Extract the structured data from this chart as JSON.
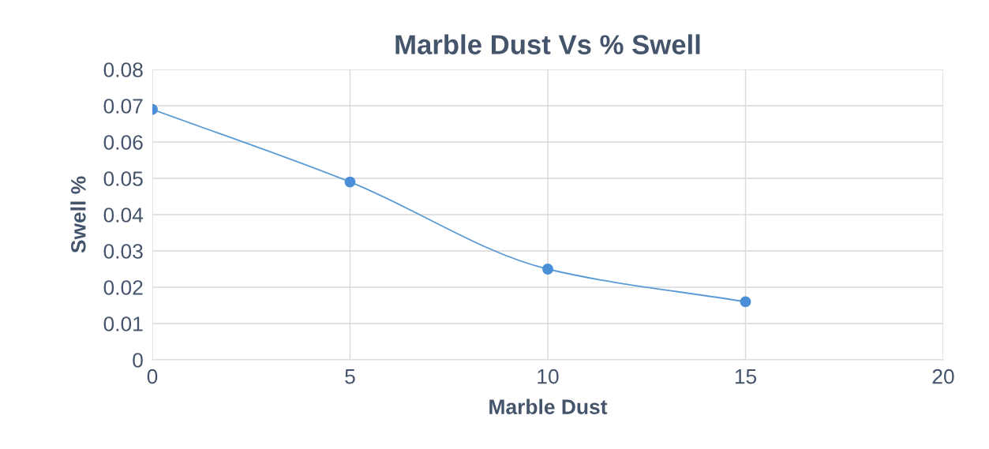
{
  "chart_data": {
    "type": "line",
    "title": "Marble Dust Vs % Swell",
    "xlabel": "Marble Dust",
    "ylabel": "Swell %",
    "x": [
      0,
      5,
      10,
      15
    ],
    "series": [
      {
        "color": "#5b9bd5",
        "values": [
          0.069,
          0.049,
          0.025,
          0.016
        ]
      }
    ],
    "xlim": [
      0,
      20
    ],
    "xticks": [
      0,
      5,
      10,
      15,
      20
    ],
    "ylim": [
      0,
      0.08
    ],
    "yticks": [
      0,
      0.01,
      0.02,
      0.03,
      0.04,
      0.05,
      0.06,
      0.07,
      0.08
    ],
    "grid": true,
    "marker": "circle",
    "line_style": "solid"
  }
}
